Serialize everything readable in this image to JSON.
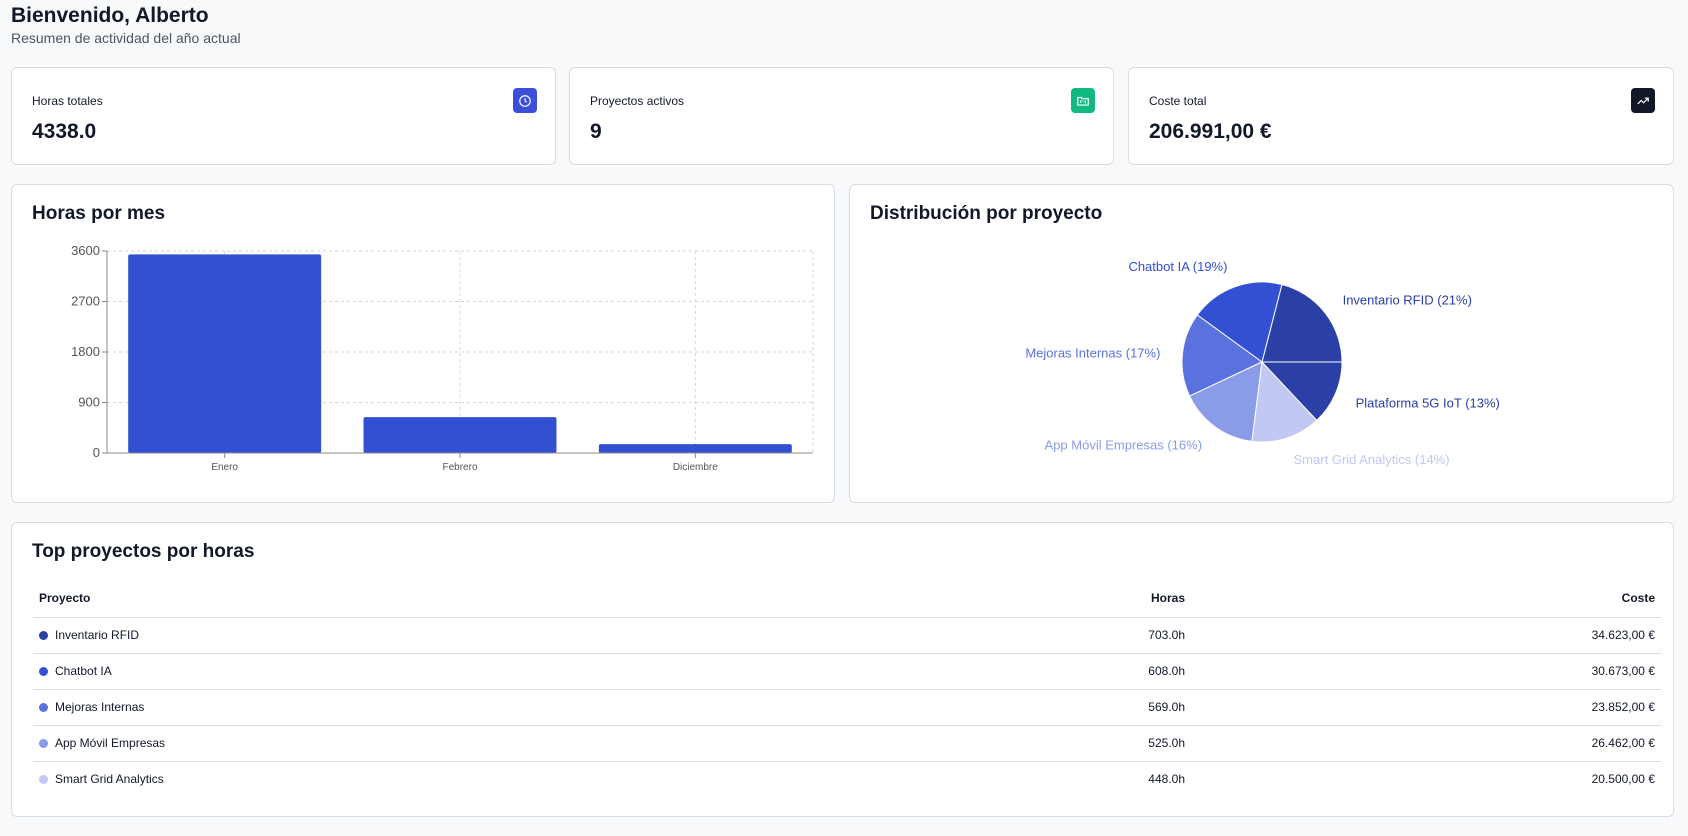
{
  "header": {
    "title": "Bienvenido, Alberto",
    "subtitle": "Resumen de actividad del año actual"
  },
  "stats": [
    {
      "label": "Horas totales",
      "value": "4338.0",
      "icon": "clock-icon",
      "color": "#3b4fdc"
    },
    {
      "label": "Proyectos activos",
      "value": "9",
      "icon": "folder-kanban-icon",
      "color": "#10b981"
    },
    {
      "label": "Coste total",
      "value": "206.991,00 €",
      "icon": "trending-up-icon",
      "color": "#111827"
    }
  ],
  "bar_card": {
    "title": "Horas por mes"
  },
  "pie_card": {
    "title": "Distribución por proyecto"
  },
  "chart_data": [
    {
      "type": "bar",
      "categories": [
        "Enero",
        "Febrero",
        "Diciembre"
      ],
      "values": [
        3540,
        640,
        158
      ],
      "ylim": [
        0,
        3600
      ],
      "yticks": [
        0,
        900,
        1800,
        2700,
        3600
      ],
      "grid": true,
      "color": "#3350d2"
    },
    {
      "type": "pie",
      "labels": [
        "Inventario RFID (21%)",
        "Chatbot IA (19%)",
        "Mejoras Internas (17%)",
        "App Móvil Empresas (16%)",
        "Smart Grid Analytics (14%)",
        "Plataforma 5G IoT (13%)"
      ],
      "values": [
        21,
        19,
        17,
        16,
        14,
        13
      ],
      "colors": [
        "#2a40a6",
        "#3350d2",
        "#5a72dd",
        "#8a9ce8",
        "#c0c8f3",
        "#2a40a6"
      ]
    }
  ],
  "table": {
    "title": "Top proyectos por horas",
    "headers": [
      "Proyecto",
      "Horas",
      "Coste"
    ],
    "rows": [
      {
        "name": "Inventario RFID",
        "hours": "703.0h",
        "cost": "34.623,00 €",
        "color": "#2a40a6"
      },
      {
        "name": "Chatbot IA",
        "hours": "608.0h",
        "cost": "30.673,00 €",
        "color": "#3350d2"
      },
      {
        "name": "Mejoras Internas",
        "hours": "569.0h",
        "cost": "23.852,00 €",
        "color": "#5a72dd"
      },
      {
        "name": "App Móvil Empresas",
        "hours": "525.0h",
        "cost": "26.462,00 €",
        "color": "#8a9ce8"
      },
      {
        "name": "Smart Grid Analytics",
        "hours": "448.0h",
        "cost": "20.500,00 €",
        "color": "#c0c8f3"
      }
    ]
  }
}
